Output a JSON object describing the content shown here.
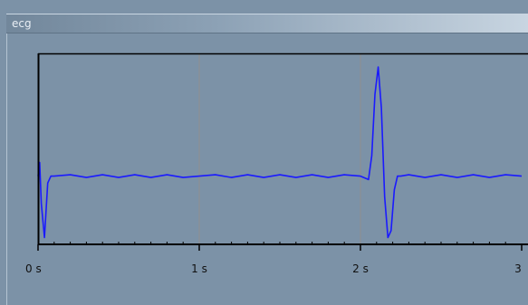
{
  "window": {
    "title": "ecg"
  },
  "colors": {
    "background": "#7c92a7",
    "signal": "#1a1aff",
    "grid": "#8f8f8f",
    "axis": "#000000"
  },
  "chart_data": {
    "type": "line",
    "title": "",
    "xlabel": "",
    "ylabel": "",
    "xlim": [
      0,
      3
    ],
    "ylim": [
      -1,
      1.8
    ],
    "xticks": [
      {
        "value": 0,
        "label": "0 s"
      },
      {
        "value": 1,
        "label": "1 s"
      },
      {
        "value": 2,
        "label": "2 s"
      },
      {
        "value": 3,
        "label": "3"
      }
    ],
    "grid": "vertical",
    "series": [
      {
        "x": [
          0.0,
          0.01,
          0.02,
          0.04,
          0.06,
          0.08,
          0.1,
          0.2,
          0.3,
          0.4,
          0.5,
          0.6,
          0.7,
          0.8,
          0.9,
          1.0,
          1.1,
          1.2,
          1.3,
          1.4,
          1.5,
          1.6,
          1.7,
          1.8,
          1.9,
          2.0,
          2.05,
          2.07,
          2.09,
          2.11,
          2.13,
          2.15,
          2.17,
          2.19,
          2.21,
          2.23,
          2.25,
          2.3,
          2.4,
          2.5,
          2.6,
          2.7,
          2.8,
          2.9,
          3.0
        ],
        "y": [
          0.0,
          0.2,
          -0.4,
          -0.9,
          -0.1,
          0.0,
          0.0,
          0.02,
          -0.02,
          0.02,
          -0.02,
          0.02,
          -0.02,
          0.02,
          -0.02,
          0.0,
          0.02,
          -0.02,
          0.02,
          -0.02,
          0.02,
          -0.02,
          0.02,
          -0.02,
          0.02,
          0.0,
          -0.05,
          0.3,
          1.2,
          1.6,
          1.0,
          -0.3,
          -0.9,
          -0.8,
          -0.2,
          0.0,
          0.0,
          0.02,
          -0.02,
          0.02,
          -0.02,
          0.02,
          -0.02,
          0.02,
          0.0
        ]
      }
    ]
  }
}
